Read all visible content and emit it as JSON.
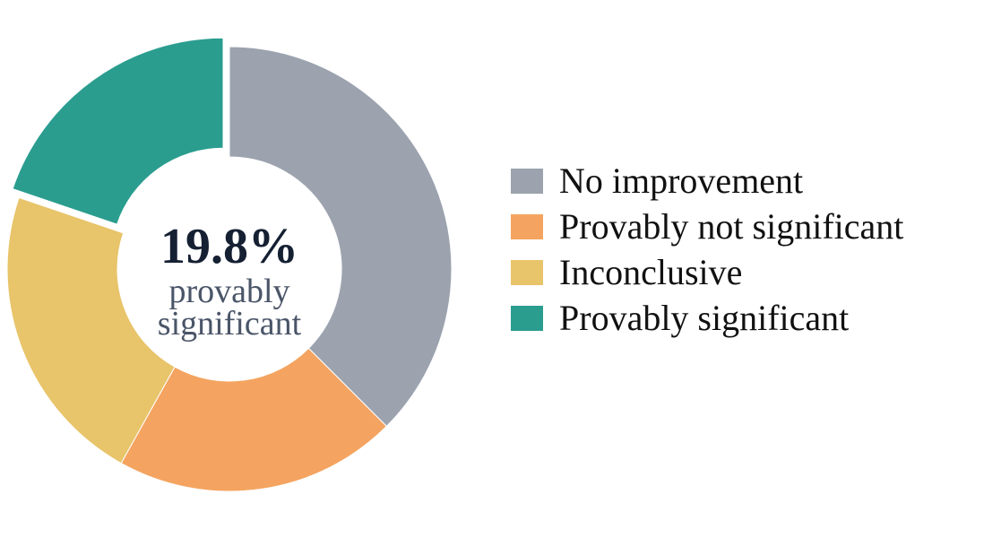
{
  "chart_data": {
    "type": "pie",
    "variant": "donut",
    "categories": [
      "No improvement",
      "Provably not significant",
      "Inconclusive",
      "Provably significant"
    ],
    "values": [
      37.5,
      20.6,
      22.1,
      19.8
    ],
    "unit": "%",
    "colors": [
      "#9ca3af",
      "#f4a460",
      "#e8c46a",
      "#2a9d8f"
    ],
    "exploded": "Provably significant",
    "legend_position": "right",
    "center_label": {
      "value": "19.8%",
      "caption_line1": "provably",
      "caption_line2": "significant"
    },
    "title": "",
    "xlabel": "",
    "ylabel": ""
  }
}
